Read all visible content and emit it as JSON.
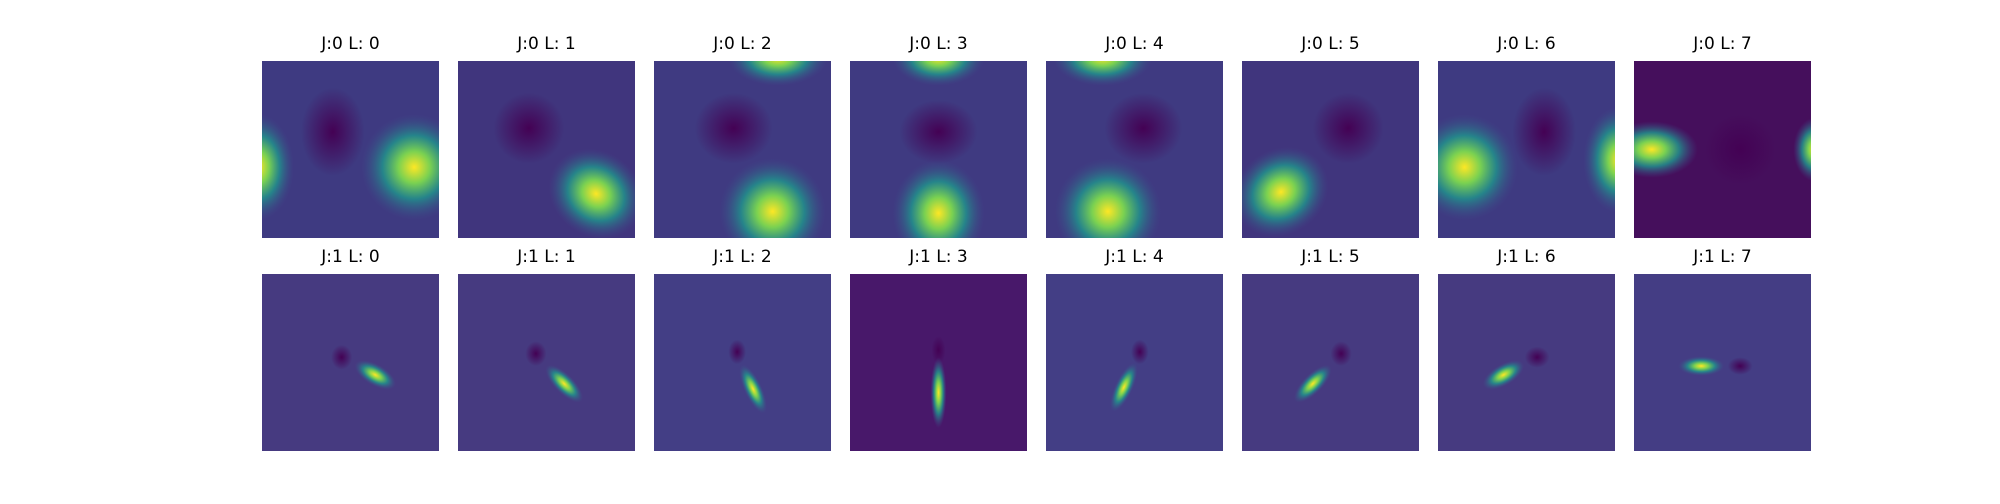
{
  "rows": [
    [
      "J:0 L: 0",
      "J:0 L: 1",
      "J:0 L: 2",
      "J:0 L: 3",
      "J:0 L: 4",
      "J:0 L: 5",
      "J:0 L: 6",
      "J:0 L: 7"
    ],
    [
      "J:1 L: 0",
      "J:1 L: 1",
      "J:1 L: 2",
      "J:1 L: 3",
      "J:1 L: 4",
      "J:1 L: 5",
      "J:1 L: 6",
      "J:1 L: 7"
    ]
  ]
}
